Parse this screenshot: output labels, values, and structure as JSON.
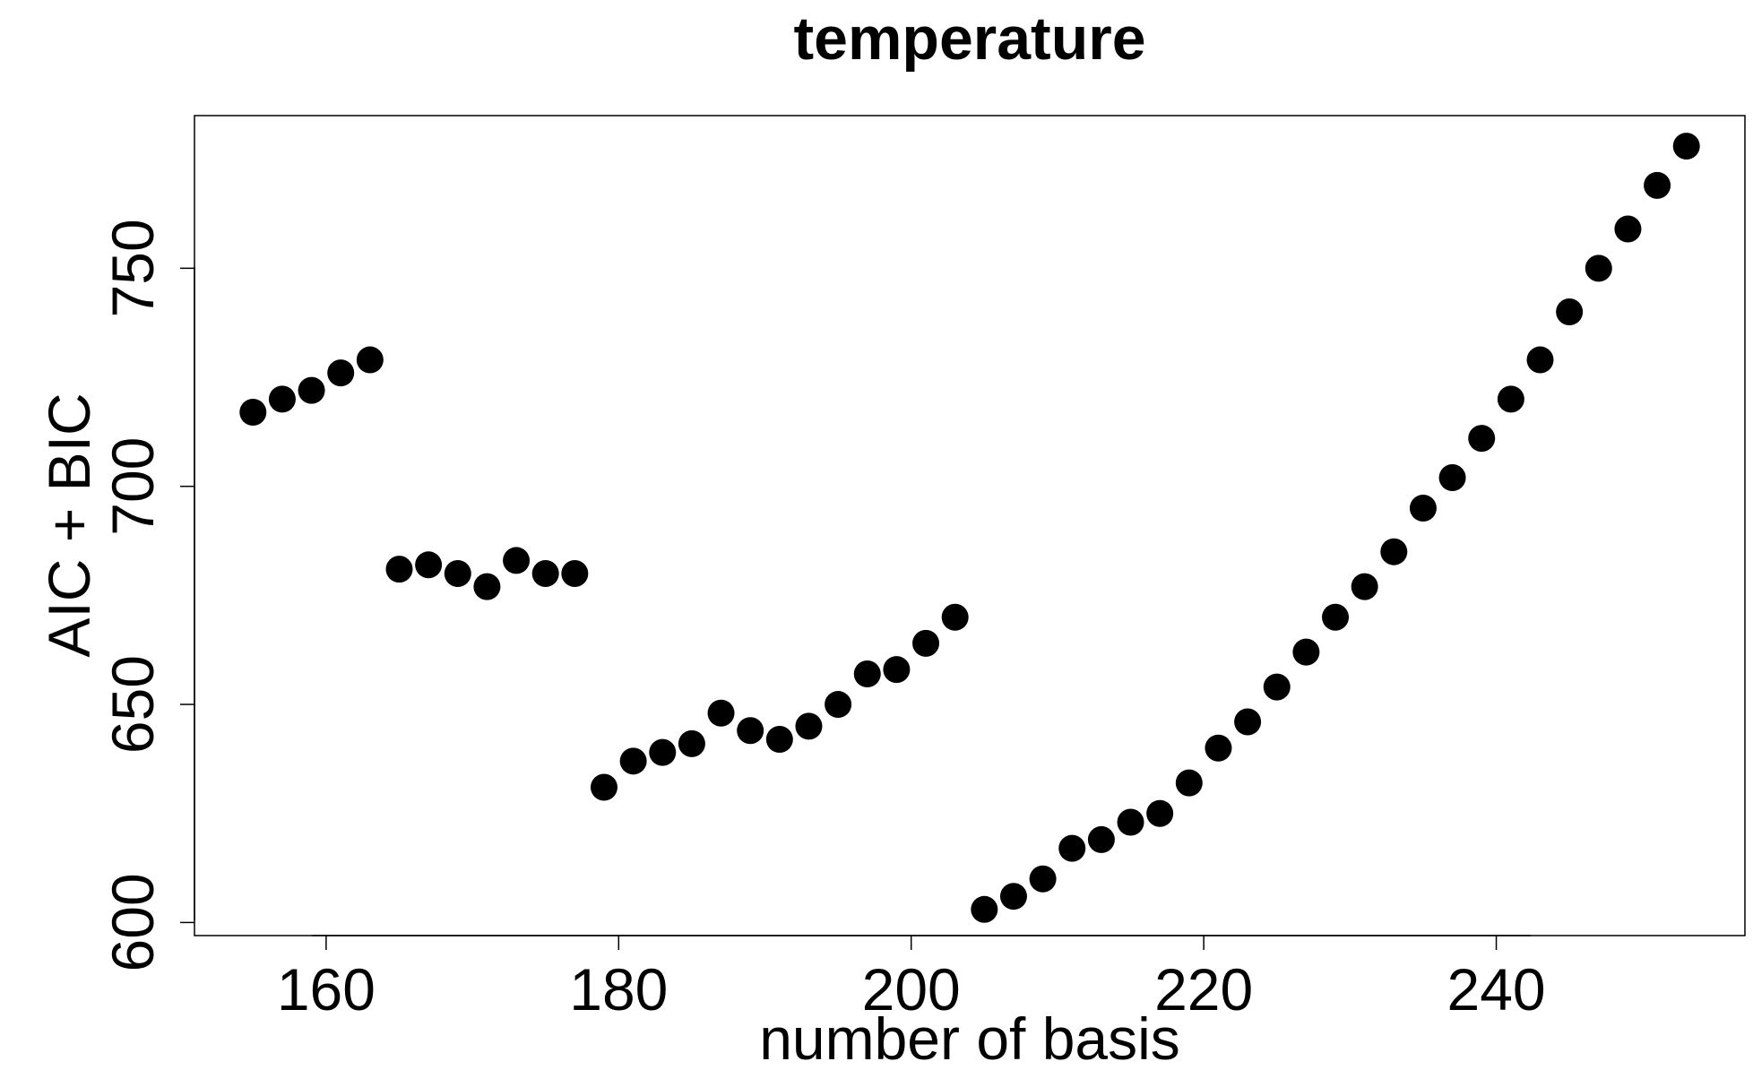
{
  "chart_data": {
    "type": "scatter",
    "title": "temperature",
    "xlabel": "number of basis",
    "ylabel": "AIC + BIC",
    "xlim": [
      151,
      257
    ],
    "ylim": [
      597,
      785
    ],
    "x_ticks": [
      160,
      180,
      200,
      220,
      240
    ],
    "y_ticks": [
      600,
      650,
      700,
      750
    ],
    "grid": false,
    "marker_color": "#000000",
    "series": [
      {
        "x": [
          155,
          157,
          159,
          161,
          163,
          165,
          167,
          169,
          171,
          173,
          175,
          177,
          179,
          181,
          183,
          185,
          187,
          189,
          191,
          193,
          195,
          197,
          199,
          201,
          203,
          205,
          207,
          209,
          211,
          213,
          215,
          217,
          219,
          221,
          223,
          225,
          227,
          229,
          231,
          233,
          235,
          237,
          239,
          241,
          243,
          245,
          247,
          249,
          251,
          253
        ],
        "y": [
          717,
          720,
          722,
          726,
          729,
          681,
          682,
          680,
          677,
          683,
          680,
          680,
          631,
          637,
          639,
          641,
          648,
          644,
          642,
          645,
          650,
          657,
          658,
          664,
          670,
          603,
          606,
          610,
          617,
          619,
          623,
          625,
          632,
          640,
          646,
          654,
          662,
          670,
          677,
          685,
          695,
          702,
          711,
          720,
          729,
          740,
          750,
          759,
          769,
          778
        ]
      }
    ]
  }
}
